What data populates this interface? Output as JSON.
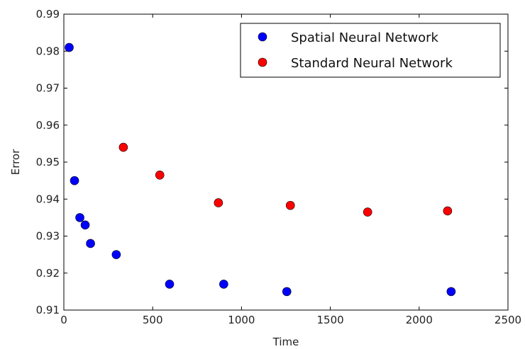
{
  "chart_data": {
    "type": "scatter",
    "title": "",
    "xlabel": "Time",
    "ylabel": "Error",
    "xlim": [
      0,
      2500
    ],
    "ylim": [
      0.91,
      0.99
    ],
    "xticks": [
      "0",
      "500",
      "1000",
      "1500",
      "2000",
      "2500"
    ],
    "yticks": [
      "0.91",
      "0.92",
      "0.93",
      "0.94",
      "0.95",
      "0.96",
      "0.97",
      "0.98",
      "0.99"
    ],
    "grid": false,
    "legend_position": "top-right",
    "series": [
      {
        "name": "Spatial Neural Network",
        "color": "#0000ff",
        "x": [
          30,
          60,
          90,
          120,
          150,
          295,
          595,
          900,
          1255,
          2180
        ],
        "y": [
          0.981,
          0.945,
          0.935,
          0.933,
          0.928,
          0.925,
          0.917,
          0.917,
          0.915,
          0.915
        ]
      },
      {
        "name": "Standard Neural Network",
        "color": "#ff0000",
        "x": [
          335,
          540,
          870,
          1275,
          1710,
          2160
        ],
        "y": [
          0.954,
          0.9465,
          0.939,
          0.9383,
          0.9365,
          0.9368
        ]
      }
    ]
  }
}
